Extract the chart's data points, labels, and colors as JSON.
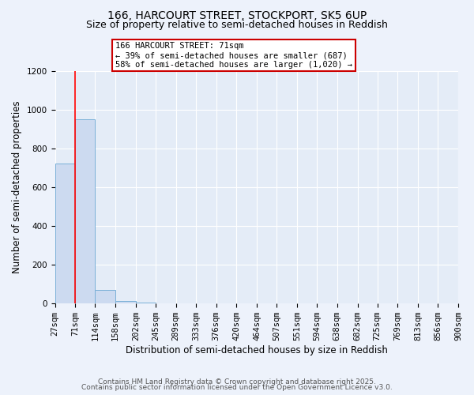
{
  "title1": "166, HARCOURT STREET, STOCKPORT, SK5 6UP",
  "title2": "Size of property relative to semi-detached houses in Reddish",
  "xlabel": "Distribution of semi-detached houses by size in Reddish",
  "ylabel": "Number of semi-detached properties",
  "bins": [
    27,
    71,
    114,
    158,
    202,
    245,
    289,
    333,
    376,
    420,
    464,
    507,
    551,
    594,
    638,
    682,
    725,
    769,
    813,
    856,
    900
  ],
  "bar_heights": [
    720,
    950,
    70,
    15,
    5,
    2,
    1,
    1,
    1,
    0,
    0,
    0,
    0,
    0,
    0,
    0,
    0,
    0,
    0,
    0
  ],
  "bar_color": "#ccdaf0",
  "bar_edge_color": "#7ab0d8",
  "red_line_x": 71,
  "ylim": [
    0,
    1200
  ],
  "yticks": [
    0,
    200,
    400,
    600,
    800,
    1000,
    1200
  ],
  "annotation_title": "166 HARCOURT STREET: 71sqm",
  "annotation_line1": "← 39% of semi-detached houses are smaller (687)",
  "annotation_line2": "58% of semi-detached houses are larger (1,020) →",
  "annotation_box_color": "#ffffff",
  "annotation_box_edge": "#cc0000",
  "footer1": "Contains HM Land Registry data © Crown copyright and database right 2025.",
  "footer2": "Contains public sector information licensed under the Open Government Licence v3.0.",
  "bg_color": "#edf2fb",
  "plot_bg_color": "#e4ecf7",
  "grid_color": "#ffffff",
  "title_fontsize": 10,
  "subtitle_fontsize": 9,
  "axis_label_fontsize": 8.5,
  "tick_fontsize": 7.5,
  "annotation_fontsize": 7.5,
  "footer_fontsize": 6.5
}
